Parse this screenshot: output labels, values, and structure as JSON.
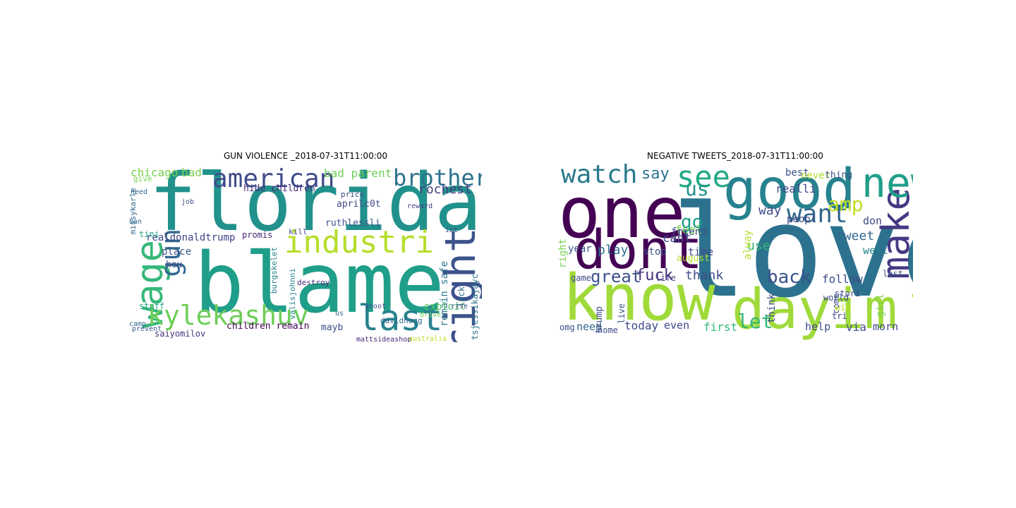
{
  "panels": [
    {
      "title": "GUN VIOLENCE _2018-07-31T11:00:00",
      "words": [
        {
          "text": "florida",
          "color": "#21918c"
        },
        {
          "text": "blame",
          "color": "#1f9e89"
        },
        {
          "text": "industri",
          "color": "#b5de2b"
        },
        {
          "text": "right",
          "color": "#3b528b"
        },
        {
          "text": "american",
          "color": "#3e4a89"
        },
        {
          "text": "brother",
          "color": "#2c728e"
        },
        {
          "text": "wage",
          "color": "#35b779"
        },
        {
          "text": "gun",
          "color": "#31688e"
        },
        {
          "text": "kylekashuv",
          "color": "#6ece58"
        },
        {
          "text": "last",
          "color": "#26828e"
        },
        {
          "text": "chicago",
          "color": "#7ad151"
        },
        {
          "text": "bad",
          "color": "#7ad151"
        },
        {
          "text": "bad parent",
          "color": "#6ece58"
        },
        {
          "text": "rochest",
          "color": "#433e85"
        },
        {
          "text": "hide children",
          "color": "#472d7b"
        },
        {
          "text": "parent hide",
          "color": "#482878"
        },
        {
          "text": "remain safe",
          "color": "#2a788e"
        },
        {
          "text": "ruthlessli",
          "color": "#3b528b"
        },
        {
          "text": "realdonaldtrump",
          "color": "#414487"
        },
        {
          "text": "place",
          "color": "#3b528b"
        },
        {
          "text": "hou",
          "color": "#3e4a89"
        },
        {
          "text": "promis",
          "color": "#482475"
        },
        {
          "text": "missykarle",
          "color": "#31688e"
        },
        {
          "text": "burgskelet",
          "color": "#26828e"
        },
        {
          "text": "valisjohnni",
          "color": "#25848e"
        },
        {
          "text": "aprilc0t",
          "color": "#3e4a89"
        },
        {
          "text": "exploit",
          "color": "#54c568"
        },
        {
          "text": "lack",
          "color": "#31688e"
        },
        {
          "text": "tsjessikajayc",
          "color": "#2c728e"
        },
        {
          "text": "children remain",
          "color": "#440154"
        },
        {
          "text": "saiyomilov",
          "color": "#46327e"
        },
        {
          "text": "stuff",
          "color": "#1fa188"
        },
        {
          "text": "mayb",
          "color": "#3e4a89"
        },
        {
          "text": "davidhogg",
          "color": "#31688e"
        },
        {
          "text": "tini",
          "color": "#22a884"
        },
        {
          "text": "give",
          "color": "#7ad151"
        },
        {
          "text": "reward",
          "color": "#424186"
        },
        {
          "text": "destroy",
          "color": "#472d7b"
        },
        {
          "text": "kill",
          "color": "#3e4a89"
        },
        {
          "text": "price",
          "color": "#3b528b"
        },
        {
          "text": "shoot",
          "color": "#3b528b"
        },
        {
          "text": "prevent",
          "color": "#3b528b"
        },
        {
          "text": "mattsideashop",
          "color": "#482878"
        },
        {
          "text": "australia",
          "color": "#bddf26"
        },
        {
          "text": "job",
          "color": "#3e4a89"
        },
        {
          "text": "ban",
          "color": "#31688e"
        },
        {
          "text": "need",
          "color": "#31688e"
        },
        {
          "text": "camp",
          "color": "#31688e"
        },
        {
          "text": "iet",
          "color": "#3b528b"
        },
        {
          "text": "rise",
          "color": "#3b528b"
        },
        {
          "text": "drive",
          "color": "#6ece58"
        },
        {
          "text": "us",
          "color": "#31688e"
        }
      ]
    },
    {
      "title": "NEGATIVE TWEETS_2018-07-31T11:00:00",
      "words": [
        {
          "text": "love",
          "color": "#2c728e"
        },
        {
          "text": "one",
          "color": "#440154"
        },
        {
          "text": "good",
          "color": "#26828e"
        },
        {
          "text": "know",
          "color": "#a0da39"
        },
        {
          "text": "dayim",
          "color": "#9fda3a"
        },
        {
          "text": "dont",
          "color": "#440154"
        },
        {
          "text": "make",
          "color": "#443983"
        },
        {
          "text": "new",
          "color": "#1f9e89"
        },
        {
          "text": "watch",
          "color": "#2a788e"
        },
        {
          "text": "see",
          "color": "#22a884"
        },
        {
          "text": "say",
          "color": "#2c728e"
        },
        {
          "text": "us",
          "color": "#21918c"
        },
        {
          "text": "want",
          "color": "#31688e"
        },
        {
          "text": "amp",
          "color": "#c2df23"
        },
        {
          "text": "look",
          "color": "#b5de2b"
        },
        {
          "text": "go",
          "color": "#1f9e89"
        },
        {
          "text": "great",
          "color": "#3b528b"
        },
        {
          "text": "fuck",
          "color": "#46327e"
        },
        {
          "text": "back",
          "color": "#3b528b"
        },
        {
          "text": "let",
          "color": "#35b779"
        },
        {
          "text": "play",
          "color": "#2c728e"
        },
        {
          "text": "thank",
          "color": "#3e4a89"
        },
        {
          "text": "feel",
          "color": "#7ad151"
        },
        {
          "text": "way",
          "color": "#3e4a89"
        },
        {
          "text": "use",
          "color": "#35b779"
        },
        {
          "text": "tweet",
          "color": "#31688e"
        },
        {
          "text": "follow",
          "color": "#3e4a89"
        },
        {
          "text": "realli",
          "color": "#3e4a89"
        },
        {
          "text": "best",
          "color": "#3b528b"
        },
        {
          "text": "never",
          "color": "#b5de2b"
        },
        {
          "text": "thing",
          "color": "#3b528b"
        },
        {
          "text": "peopl",
          "color": "#3e4a89"
        },
        {
          "text": "well",
          "color": "#26828e"
        },
        {
          "text": "don",
          "color": "#3e4a89"
        },
        {
          "text": "cant",
          "color": "#3e4a89"
        },
        {
          "text": "time",
          "color": "#3e4a89"
        },
        {
          "text": "friend",
          "color": "#3b528b"
        },
        {
          "text": "year",
          "color": "#3b528b"
        },
        {
          "text": "stop",
          "color": "#3b528b"
        },
        {
          "text": "today",
          "color": "#3e4a89"
        },
        {
          "text": "even",
          "color": "#3e4a89"
        },
        {
          "text": "first",
          "color": "#35b779"
        },
        {
          "text": "need",
          "color": "#31688e"
        },
        {
          "text": "help",
          "color": "#3e4a89"
        },
        {
          "text": "via",
          "color": "#3e4a89"
        },
        {
          "text": "morn",
          "color": "#3e4a89"
        },
        {
          "text": "girl",
          "color": "#7ad151"
        },
        {
          "text": "think",
          "color": "#3e4a89"
        },
        {
          "text": "alway",
          "color": "#b5de2b"
        },
        {
          "text": "life",
          "color": "#3e4a89"
        },
        {
          "text": "august",
          "color": "#b5de2b"
        },
        {
          "text": "right",
          "color": "#7ad151"
        },
        {
          "text": "trump",
          "color": "#3e4a89"
        },
        {
          "text": "live",
          "color": "#3b528b"
        },
        {
          "text": "game",
          "color": "#3e4a89"
        },
        {
          "text": "omg",
          "color": "#3e4a89"
        },
        {
          "text": "come",
          "color": "#3e4a89"
        },
        {
          "text": "world",
          "color": "#3e4a89"
        },
        {
          "text": "stori",
          "color": "#3e4a89"
        },
        {
          "text": "win",
          "color": "#c2df23"
        },
        {
          "text": "tri",
          "color": "#3e4a89"
        },
        {
          "text": "last",
          "color": "#3b528b"
        },
        {
          "text": "home",
          "color": "#3e4a89"
        }
      ]
    }
  ]
}
